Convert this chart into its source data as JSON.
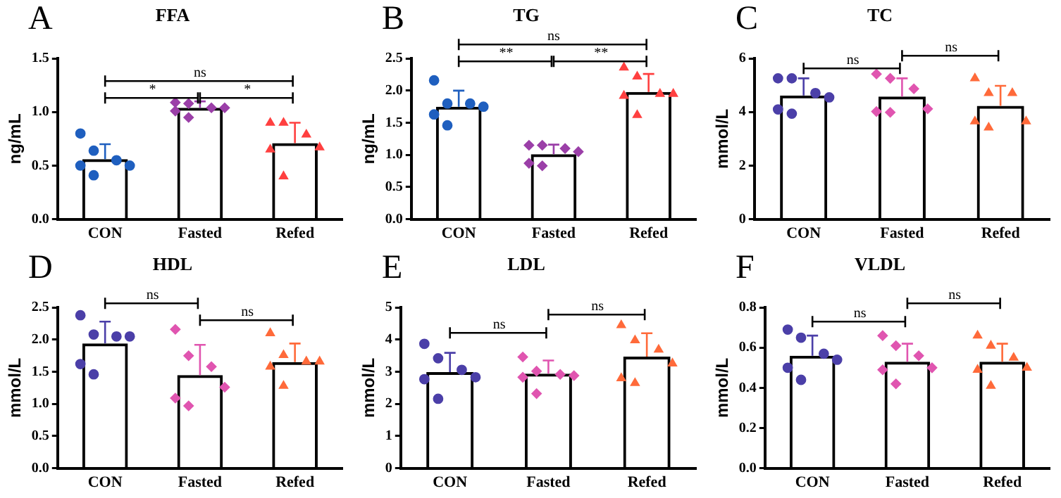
{
  "chart_data": [
    {
      "type": "bar",
      "title": "FFA",
      "ylabel": "ng/mL",
      "categories": [
        "CON",
        "Fasted",
        "Refed"
      ],
      "ylim": [
        0,
        1.5
      ],
      "yticks": [
        {
          "value": 0,
          "label": "0.0"
        },
        {
          "value": 0.5,
          "label": "0.5"
        },
        {
          "value": 1,
          "label": "1.0"
        },
        {
          "value": 1.5,
          "label": "1.5"
        }
      ],
      "grid": false,
      "legend": false,
      "annotations": [
        "A",
        "*",
        "*",
        "ns"
      ],
      "series": [
        {
          "type": "bar",
          "color": "#000000",
          "values": [
            0.56,
            1.04,
            0.71
          ],
          "errors": [
            [
              0.56,
              0.7
            ],
            [
              1.04,
              1.1
            ],
            [
              0.71,
              0.9
            ]
          ]
        },
        {
          "type": "scatter",
          "marker": "circle",
          "color": "#1f5fbf",
          "x": [
            "CON",
            "CON",
            "CON",
            "CON",
            "CON",
            "CON"
          ],
          "values": [
            0.8,
            0.64,
            0.55,
            0.5,
            0.5,
            0.41
          ]
        },
        {
          "type": "scatter",
          "marker": "diamond",
          "color": "#9b3fa8",
          "x": [
            "Fasted",
            "Fasted",
            "Fasted",
            "Fasted",
            "Fasted",
            "Fasted"
          ],
          "values": [
            1.09,
            1.08,
            1.04,
            1.04,
            1.01,
            0.95
          ]
        },
        {
          "type": "scatter",
          "marker": "triangle",
          "color": "#ff4040",
          "x": [
            "Refed",
            "Refed",
            "Refed",
            "Refed",
            "Refed",
            "Refed"
          ],
          "values": [
            0.9,
            0.9,
            0.79,
            0.67,
            0.65,
            0.4
          ]
        }
      ]
    },
    {
      "type": "bar",
      "title": "TG",
      "ylabel": "ng/mL",
      "categories": [
        "CON",
        "Fasted",
        "Refed"
      ],
      "ylim": [
        0,
        2.5
      ],
      "yticks": [
        {
          "value": 0,
          "label": "0.0"
        },
        {
          "value": 0.5,
          "label": "0.5"
        },
        {
          "value": 1,
          "label": "1.0"
        },
        {
          "value": 1.5,
          "label": "1.5"
        },
        {
          "value": 2,
          "label": "2.0"
        },
        {
          "value": 2.5,
          "label": "2.5"
        }
      ],
      "grid": false,
      "legend": false,
      "annotations": [
        "B",
        "**",
        "**",
        "ns"
      ],
      "series": [
        {
          "type": "bar",
          "color": "#000000",
          "values": [
            1.75,
            1.01,
            1.98
          ],
          "errors": [
            [
              1.75,
              2.0
            ],
            [
              1.01,
              1.16
            ],
            [
              1.98,
              2.26
            ]
          ]
        },
        {
          "type": "scatter",
          "marker": "circle",
          "color": "#1f5fbf",
          "x": [
            "CON",
            "CON",
            "CON",
            "CON",
            "CON",
            "CON"
          ],
          "values": [
            2.16,
            1.8,
            1.8,
            1.75,
            1.63,
            1.46
          ]
        },
        {
          "type": "scatter",
          "marker": "diamond",
          "color": "#9b3fa8",
          "x": [
            "Fasted",
            "Fasted",
            "Fasted",
            "Fasted",
            "Fasted",
            "Fasted"
          ],
          "values": [
            1.15,
            1.15,
            1.1,
            1.05,
            0.87,
            0.83
          ]
        },
        {
          "type": "scatter",
          "marker": "triangle",
          "color": "#ff4040",
          "x": [
            "Refed",
            "Refed",
            "Refed",
            "Refed",
            "Refed",
            "Refed"
          ],
          "values": [
            2.36,
            2.22,
            1.95,
            1.95,
            1.92,
            1.62
          ]
        }
      ]
    },
    {
      "type": "bar",
      "title": "TC",
      "ylabel": "mmol/L",
      "categories": [
        "CON",
        "Fasted",
        "Refed"
      ],
      "ylim": [
        0,
        6
      ],
      "yticks": [
        0,
        2,
        4,
        6
      ],
      "grid": false,
      "legend": false,
      "annotations": [
        "C",
        "ns",
        "ns"
      ],
      "series": [
        {
          "type": "bar",
          "color": "#000000",
          "values": [
            4.62,
            4.58,
            4.23
          ],
          "errors": [
            [
              4.62,
              5.26
            ],
            [
              4.58,
              5.26
            ],
            [
              4.23,
              4.98
            ]
          ]
        },
        {
          "type": "scatter",
          "marker": "circle",
          "color": "#4b3fa8",
          "x": [
            "CON",
            "CON",
            "CON",
            "CON",
            "CON",
            "CON"
          ],
          "values": [
            5.26,
            5.26,
            4.71,
            4.55,
            4.1,
            3.94
          ]
        },
        {
          "type": "scatter",
          "marker": "diamond",
          "color": "#e055b0",
          "x": [
            "Fasted",
            "Fasted",
            "Fasted",
            "Fasted",
            "Fasted",
            "Fasted"
          ],
          "values": [
            5.42,
            5.26,
            4.87,
            4.12,
            4.02,
            3.99
          ]
        },
        {
          "type": "scatter",
          "marker": "triangle",
          "color": "#ff6a3a",
          "x": [
            "Refed",
            "Refed",
            "Refed",
            "Refed",
            "Refed",
            "Refed"
          ],
          "values": [
            5.26,
            4.71,
            4.71,
            3.65,
            3.65,
            3.42
          ]
        }
      ]
    },
    {
      "type": "bar",
      "title": "HDL",
      "ylabel": "mmol/L",
      "categories": [
        "CON",
        "Fasted",
        "Refed"
      ],
      "ylim": [
        0,
        2.5
      ],
      "yticks": [
        {
          "value": 0,
          "label": "0.0"
        },
        {
          "value": 0.5,
          "label": "0.5"
        },
        {
          "value": 1,
          "label": "1.0"
        },
        {
          "value": 1.5,
          "label": "1.5"
        },
        {
          "value": 2,
          "label": "2.0"
        },
        {
          "value": 2.5,
          "label": "2.5"
        }
      ],
      "grid": false,
      "legend": false,
      "annotations": [
        "D",
        "ns",
        "ns"
      ],
      "series": [
        {
          "type": "bar",
          "color": "#000000",
          "values": [
            1.94,
            1.45,
            1.65
          ],
          "errors": [
            [
              1.94,
              2.28
            ],
            [
              1.45,
              1.92
            ],
            [
              1.65,
              1.94
            ]
          ]
        },
        {
          "type": "scatter",
          "marker": "circle",
          "color": "#4b3fa8",
          "x": [
            "CON",
            "CON",
            "CON",
            "CON",
            "CON",
            "CON"
          ],
          "values": [
            2.38,
            2.08,
            2.05,
            2.05,
            1.62,
            1.46
          ]
        },
        {
          "type": "scatter",
          "marker": "diamond",
          "color": "#e055b0",
          "x": [
            "Fasted",
            "Fasted",
            "Fasted",
            "Fasted",
            "Fasted",
            "Fasted"
          ],
          "values": [
            2.16,
            1.75,
            1.58,
            1.26,
            1.09,
            0.97
          ]
        },
        {
          "type": "scatter",
          "marker": "triangle",
          "color": "#ff6a3a",
          "x": [
            "Refed",
            "Refed",
            "Refed",
            "Refed",
            "Refed",
            "Refed"
          ],
          "values": [
            2.1,
            1.76,
            1.66,
            1.66,
            1.58,
            1.28
          ]
        }
      ]
    },
    {
      "type": "bar",
      "title": "LDL",
      "ylabel": "mmol/L",
      "categories": [
        "CON",
        "Fasted",
        "Refed"
      ],
      "ylim": [
        0,
        5
      ],
      "yticks": [
        0,
        1,
        2,
        3,
        4,
        5
      ],
      "grid": false,
      "legend": false,
      "annotations": [
        "E",
        "ns",
        "ns"
      ],
      "series": [
        {
          "type": "bar",
          "color": "#000000",
          "values": [
            2.99,
            2.94,
            3.47
          ],
          "errors": [
            [
              2.99,
              3.59
            ],
            [
              2.94,
              3.35
            ],
            [
              3.47,
              4.2
            ]
          ]
        },
        {
          "type": "scatter",
          "marker": "circle",
          "color": "#4b3fa8",
          "x": [
            "CON",
            "CON",
            "CON",
            "CON",
            "CON",
            "CON"
          ],
          "values": [
            3.87,
            3.42,
            3.06,
            2.83,
            2.77,
            2.16
          ]
        },
        {
          "type": "scatter",
          "marker": "diamond",
          "color": "#e055b0",
          "x": [
            "Fasted",
            "Fasted",
            "Fasted",
            "Fasted",
            "Fasted",
            "Fasted"
          ],
          "values": [
            3.46,
            3.02,
            2.92,
            2.88,
            2.83,
            2.32
          ]
        },
        {
          "type": "scatter",
          "marker": "triangle",
          "color": "#ff6a3a",
          "x": [
            "Refed",
            "Refed",
            "Refed",
            "Refed",
            "Refed",
            "Refed"
          ],
          "values": [
            4.45,
            3.98,
            3.69,
            3.26,
            2.8,
            2.65
          ]
        }
      ]
    },
    {
      "type": "bar",
      "title": "VLDL",
      "ylabel": "mmol/L",
      "categories": [
        "CON",
        "Fasted",
        "Refed"
      ],
      "ylim": [
        0,
        0.8
      ],
      "yticks": [
        {
          "value": 0,
          "label": "0.0"
        },
        {
          "value": 0.2,
          "label": "0.2"
        },
        {
          "value": 0.4,
          "label": "0.4"
        },
        {
          "value": 0.6,
          "label": "0.6"
        },
        {
          "value": 0.8,
          "label": "0.8"
        }
      ],
      "grid": false,
      "legend": false,
      "annotations": [
        "F",
        "ns",
        "ns"
      ],
      "series": [
        {
          "type": "bar",
          "color": "#000000",
          "values": [
            0.56,
            0.53,
            0.53
          ],
          "errors": [
            [
              0.56,
              0.66
            ],
            [
              0.53,
              0.62
            ],
            [
              0.53,
              0.62
            ]
          ]
        },
        {
          "type": "scatter",
          "marker": "circle",
          "color": "#4b3fa8",
          "x": [
            "CON",
            "CON",
            "CON",
            "CON",
            "CON",
            "CON"
          ],
          "values": [
            0.69,
            0.65,
            0.57,
            0.54,
            0.5,
            0.44
          ]
        },
        {
          "type": "scatter",
          "marker": "diamond",
          "color": "#e055b0",
          "x": [
            "Fasted",
            "Fasted",
            "Fasted",
            "Fasted",
            "Fasted",
            "Fasted"
          ],
          "values": [
            0.66,
            0.61,
            0.56,
            0.5,
            0.49,
            0.42
          ]
        },
        {
          "type": "scatter",
          "marker": "triangle",
          "color": "#ff6a3a",
          "x": [
            "Refed",
            "Refed",
            "Refed",
            "Refed",
            "Refed",
            "Refed"
          ],
          "values": [
            0.66,
            0.61,
            0.55,
            0.5,
            0.49,
            0.41
          ]
        }
      ]
    }
  ]
}
